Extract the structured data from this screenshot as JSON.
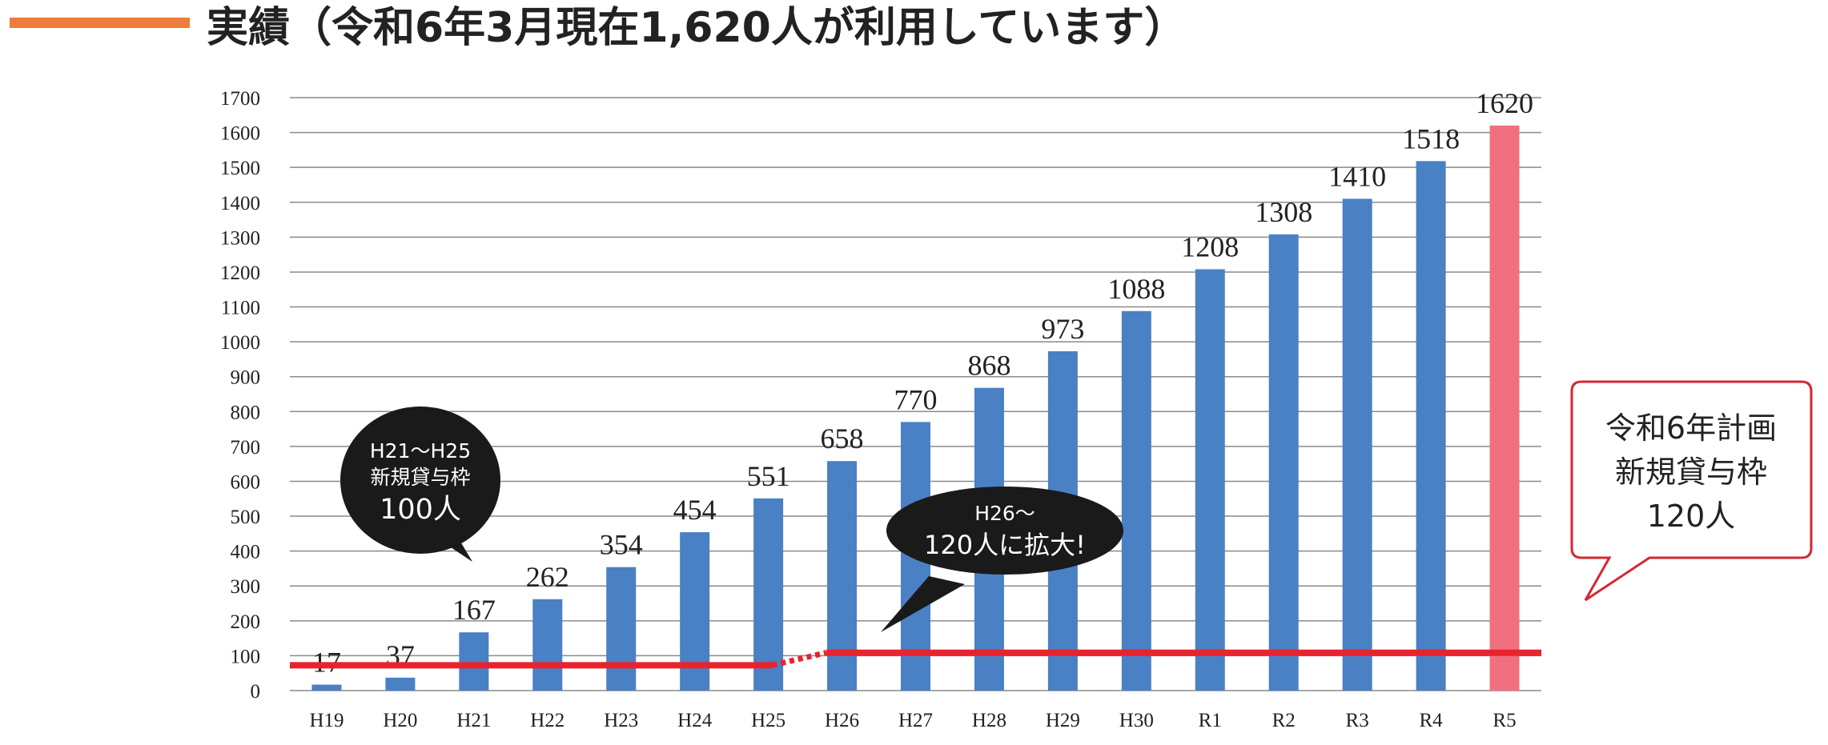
{
  "header": {
    "title": "実績（令和6年3月現在1,620人が利用しています）"
  },
  "chart_data": {
    "type": "bar",
    "categories": [
      "H19",
      "H20",
      "H21",
      "H22",
      "H23",
      "H24",
      "H25",
      "H26",
      "H27",
      "H28",
      "H29",
      "H30",
      "R1",
      "R2",
      "R3",
      "R4",
      "R5"
    ],
    "values": [
      17,
      37,
      167,
      262,
      354,
      454,
      551,
      658,
      770,
      868,
      973,
      1088,
      1208,
      1308,
      1410,
      1518,
      1620
    ],
    "ylim": [
      0,
      1700
    ],
    "yticks": [
      0,
      100,
      200,
      300,
      400,
      500,
      600,
      700,
      800,
      900,
      1000,
      1100,
      1200,
      1300,
      1400,
      1500,
      1600,
      1700
    ],
    "grid": true,
    "bar_color": "#4a80c4",
    "highlight_color": "#f07080",
    "highlight_category": "R5",
    "quota_line_color": "#e8232e",
    "quota_lines": [
      {
        "from": "H19",
        "to": "H25",
        "value": 100
      },
      {
        "from": "H26",
        "to": "R5",
        "value": 120
      }
    ],
    "annotations": {
      "bubble_1": {
        "line1": "H21〜H25",
        "line2": "新規貸与枠",
        "line3": "100人"
      },
      "bubble_2": {
        "line1": "H26〜",
        "line2": "120人に拡大!"
      },
      "callout": {
        "line1": "令和6年計画",
        "line2": "新規貸与枠",
        "line3": "120人"
      }
    }
  }
}
